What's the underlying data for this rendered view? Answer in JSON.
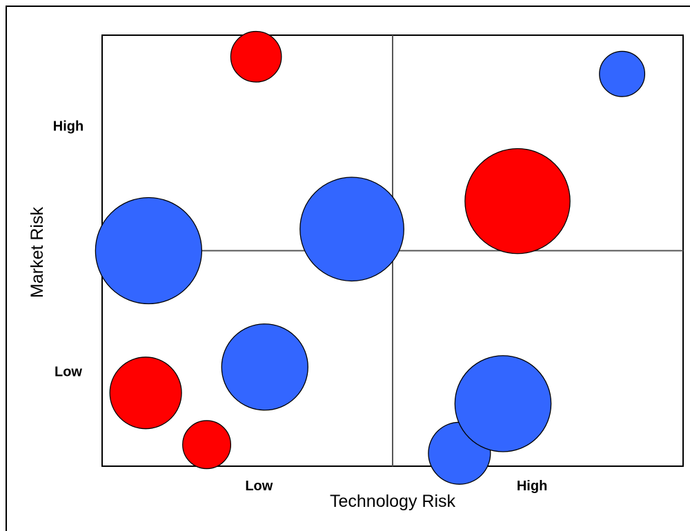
{
  "chart_data": {
    "type": "scatter",
    "subtype": "bubble",
    "title": "",
    "xlabel": "Technology Risk",
    "ylabel": "Market Risk",
    "xlim": [
      0,
      10
    ],
    "ylim": [
      0,
      10
    ],
    "x_ticks": [
      {
        "value": 2.7,
        "label": "Low"
      },
      {
        "value": 7.4,
        "label": "High"
      }
    ],
    "y_ticks": [
      {
        "value": 2.2,
        "label": "Low"
      },
      {
        "value": 7.9,
        "label": "High"
      }
    ],
    "quadrant_dividers": {
      "x": 5.0,
      "y": 5.0
    },
    "grid": false,
    "legend": "none",
    "colors": {
      "red_group": "#ff0000",
      "blue_group": "#3366ff",
      "outline": "#000000"
    },
    "series": [
      {
        "color": "#ff0000",
        "points": [
          {
            "x": 2.65,
            "y": 9.5,
            "size": 1.0
          },
          {
            "x": 7.15,
            "y": 6.15,
            "size": 4.3
          },
          {
            "x": 0.75,
            "y": 1.7,
            "size": 2.0
          },
          {
            "x": 1.8,
            "y": 0.5,
            "size": 0.9
          }
        ]
      },
      {
        "color": "#3366ff",
        "points": [
          {
            "x": 8.95,
            "y": 9.1,
            "size": 0.8
          },
          {
            "x": 0.8,
            "y": 5.0,
            "size": 4.4
          },
          {
            "x": 4.3,
            "y": 5.5,
            "size": 4.2
          },
          {
            "x": 2.8,
            "y": 2.3,
            "size": 2.9
          },
          {
            "x": 6.15,
            "y": 0.3,
            "size": 1.5
          },
          {
            "x": 6.9,
            "y": 1.45,
            "size": 3.6
          }
        ]
      }
    ]
  }
}
